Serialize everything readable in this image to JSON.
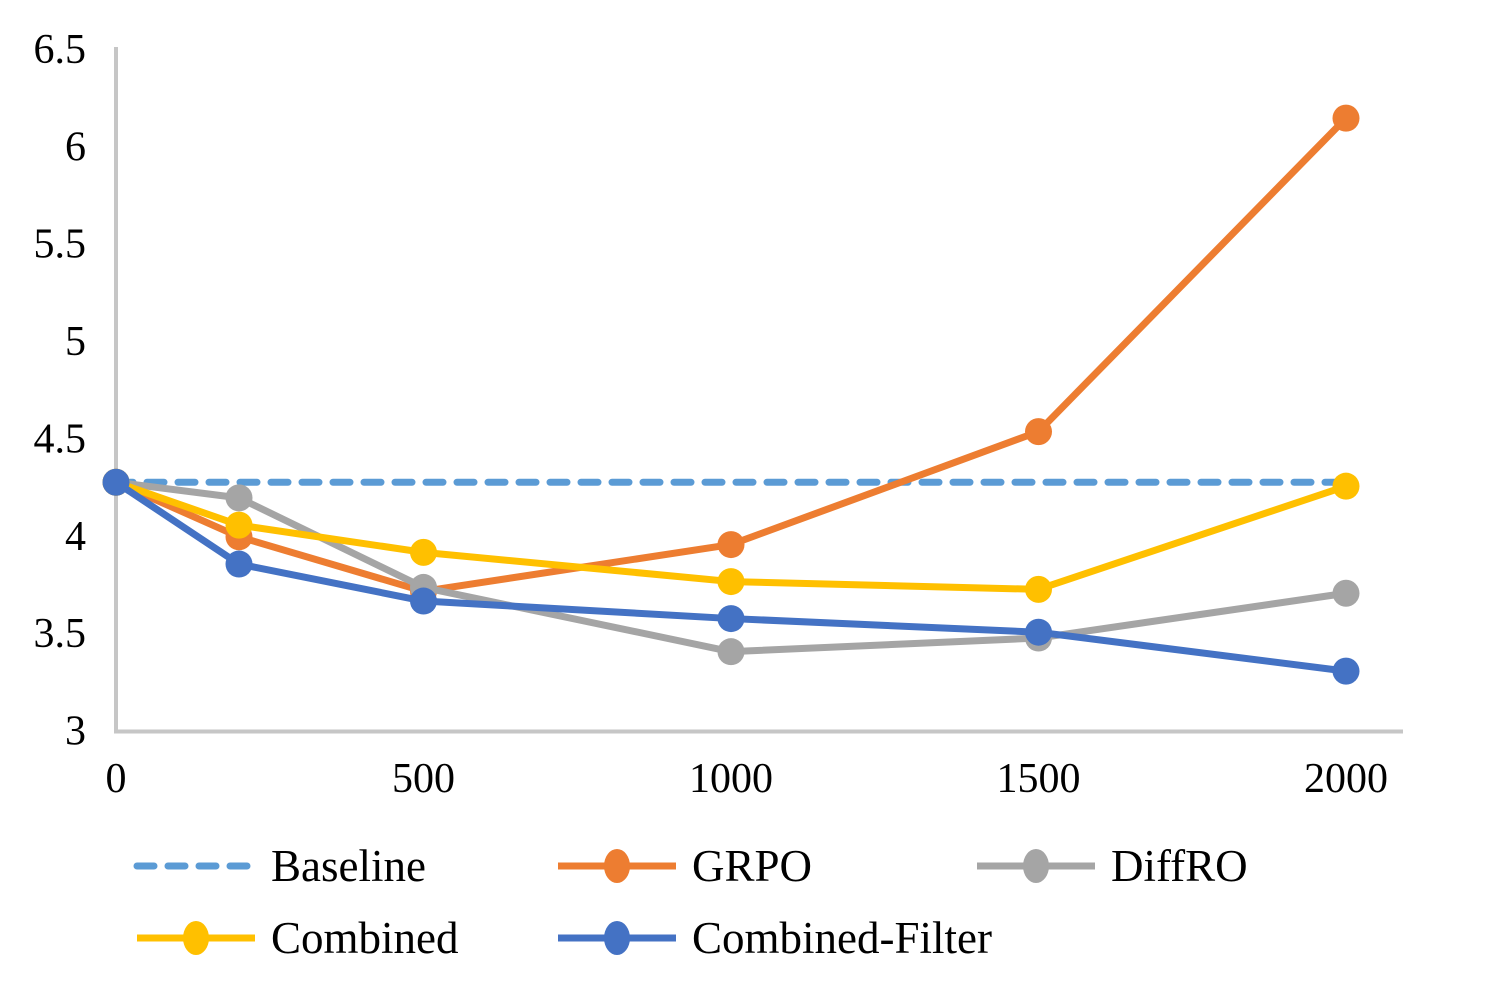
{
  "background": "#FFFFFF",
  "colors": {
    "axis_line": "#C6C6C6",
    "text": "#000000",
    "baseline_blue": "#5B9BD5",
    "grpo_orange": "#ED7D31",
    "diffro_gray": "#A5A5A5",
    "combined_yellow": "#FFC000",
    "combined_filter_blue": "#4472C4"
  },
  "chart_data": {
    "type": "line",
    "title": "",
    "xlabel": "",
    "ylabel": "",
    "grid": false,
    "legend_position": "bottom",
    "x": [
      0,
      200,
      500,
      1000,
      1500,
      2000
    ],
    "x_tick_values": [
      0,
      500,
      1000,
      1500,
      2000
    ],
    "x_tick_labels": [
      "0",
      "500",
      "1000",
      "1500",
      "2000"
    ],
    "y_tick_values": [
      6.5,
      6,
      5.5,
      5,
      4.5,
      4,
      3.5,
      3
    ],
    "y_tick_labels": [
      "6.5",
      "6",
      "5.5",
      "5",
      "4.5",
      "4",
      "3.5",
      "3"
    ],
    "xlim": [
      0,
      2000
    ],
    "ylim": [
      3,
      6.5
    ],
    "series": [
      {
        "name": "Baseline",
        "color": "#5B9BD5",
        "dashed": true,
        "markers": false,
        "values": [
          4.28,
          4.28,
          4.28,
          4.28,
          4.28,
          4.28
        ]
      },
      {
        "name": "GRPO",
        "color": "#ED7D31",
        "dashed": false,
        "markers": true,
        "values": [
          4.28,
          4.0,
          3.72,
          3.96,
          4.54,
          6.15
        ]
      },
      {
        "name": "DiffRO",
        "color": "#A5A5A5",
        "dashed": false,
        "markers": true,
        "values": [
          4.28,
          4.2,
          3.74,
          3.41,
          3.48,
          3.71
        ]
      },
      {
        "name": "Combined",
        "color": "#FFC000",
        "dashed": false,
        "markers": true,
        "values": [
          4.28,
          4.06,
          3.92,
          3.77,
          3.73,
          4.26
        ]
      },
      {
        "name": "Combined-Filter",
        "color": "#4472C4",
        "dashed": false,
        "markers": true,
        "values": [
          4.28,
          3.86,
          3.67,
          3.58,
          3.51,
          3.31
        ]
      }
    ]
  }
}
